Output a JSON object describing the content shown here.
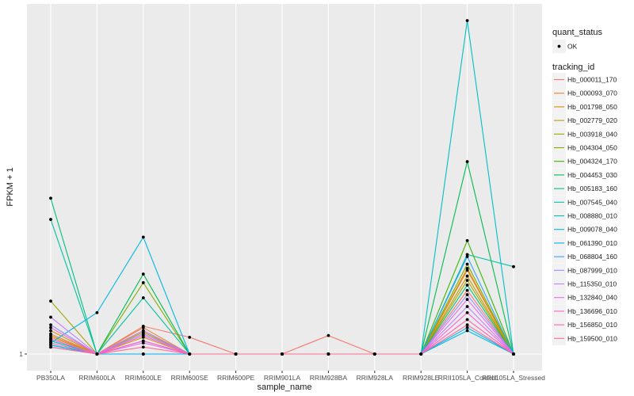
{
  "chart_data": {
    "type": "line",
    "xlabel": "sample_name",
    "ylabel": "FPKM + 1",
    "y_scale": "log",
    "y_ticks": [
      "1"
    ],
    "grid": true,
    "legend_position": "right",
    "categories": [
      "PB350LA",
      "RRIM600LA",
      "RRIM600LE",
      "RRIM600SE",
      "RRIM600PE",
      "RRIM901LA",
      "RRIM928BA",
      "RRIM928LA",
      "RRIM928LE",
      "RRII105LA_Control",
      "RRII105LA_Stressed"
    ],
    "point_legend": {
      "title": "quant_status",
      "items": [
        "OK"
      ]
    },
    "line_legend_title": "tracking_id",
    "series": [
      {
        "name": "Hb_000011_170",
        "color": "#F8766D",
        "values": [
          1.5,
          1,
          1.75,
          1.4,
          1,
          1,
          1.45,
          1,
          1,
          3.6,
          1
        ]
      },
      {
        "name": "Hb_000093_070",
        "color": "#EA8331",
        "values": [
          1.4,
          1,
          1.7,
          1,
          1,
          1,
          1,
          1,
          1,
          5.4,
          1
        ]
      },
      {
        "name": "Hb_001798_050",
        "color": "#D89000",
        "values": [
          1.45,
          1,
          1.4,
          1,
          1,
          1,
          1,
          1,
          1,
          5.6,
          1
        ]
      },
      {
        "name": "Hb_002779_020",
        "color": "#C09B00",
        "values": [
          1.6,
          1,
          1.55,
          1,
          1,
          1,
          1,
          1,
          1,
          4.8,
          1
        ]
      },
      {
        "name": "Hb_003918_040",
        "color": "#A3A500",
        "values": [
          2.9,
          1,
          1.6,
          1,
          1,
          1,
          1,
          1,
          1,
          4.4,
          1
        ]
      },
      {
        "name": "Hb_004304_050",
        "color": "#7CAE00",
        "values": [
          1.35,
          1,
          4.2,
          1,
          1,
          1,
          1,
          1,
          1,
          6.1,
          1
        ]
      },
      {
        "name": "Hb_004324_170",
        "color": "#39B600",
        "values": [
          1.3,
          1,
          1,
          1,
          1,
          1,
          1,
          1,
          1,
          9.8,
          1
        ]
      },
      {
        "name": "Hb_004453_030",
        "color": "#00BB4E",
        "values": [
          1.2,
          1,
          5.0,
          1,
          1,
          1,
          1,
          1,
          1,
          48,
          1
        ]
      },
      {
        "name": "Hb_005183_160",
        "color": "#00BF7D",
        "values": [
          23,
          1,
          1,
          1,
          1,
          1,
          1,
          1,
          1,
          4.0,
          1
        ]
      },
      {
        "name": "Hb_007545_040",
        "color": "#00C1A3",
        "values": [
          15,
          1,
          3.1,
          1,
          1,
          1,
          1,
          1,
          1,
          7.4,
          5.8
        ]
      },
      {
        "name": "Hb_008880_010",
        "color": "#00BFC4",
        "values": [
          1.3,
          1,
          1,
          1,
          1,
          1,
          1,
          1,
          1,
          820,
          1
        ]
      },
      {
        "name": "Hb_009078_040",
        "color": "#00BAE0",
        "values": [
          1.25,
          2.3,
          10.5,
          1,
          1,
          1,
          1,
          1,
          1,
          1.6,
          1
        ]
      },
      {
        "name": "Hb_061390_010",
        "color": "#00B0F6",
        "values": [
          1.2,
          1,
          1,
          1,
          1,
          1,
          1,
          1,
          1,
          1.7,
          1
        ]
      },
      {
        "name": "Hb_068804_160",
        "color": "#35A2FF",
        "values": [
          1.15,
          1,
          1.3,
          1,
          1,
          1,
          1,
          1,
          1,
          7.1,
          1
        ]
      },
      {
        "name": "Hb_087999_010",
        "color": "#9590FF",
        "values": [
          1.8,
          1,
          1.5,
          1,
          1,
          1,
          1,
          1,
          1,
          3.3,
          1
        ]
      },
      {
        "name": "Hb_115350_010",
        "color": "#C77CFF",
        "values": [
          2.1,
          1,
          1.6,
          1,
          1,
          1,
          1,
          1,
          1,
          2.6,
          1
        ]
      },
      {
        "name": "Hb_132840_040",
        "color": "#E76BF3",
        "values": [
          1.35,
          1,
          1.25,
          1,
          1,
          1,
          1,
          1,
          1,
          3.0,
          1
        ]
      },
      {
        "name": "Hb_136696_010",
        "color": "#FA62DB",
        "values": [
          1.7,
          1,
          1.45,
          1,
          1,
          1,
          1,
          1,
          1,
          2.3,
          1
        ]
      },
      {
        "name": "Hb_156850_010",
        "color": "#FF62BC",
        "values": [
          1.25,
          1,
          1.3,
          1,
          1,
          1,
          1,
          1,
          1,
          2.0,
          1
        ]
      },
      {
        "name": "Hb_159500_010",
        "color": "#FF6C91",
        "values": [
          1.15,
          1,
          1.15,
          1,
          1,
          1,
          1,
          1,
          1,
          1.8,
          1
        ]
      }
    ]
  }
}
